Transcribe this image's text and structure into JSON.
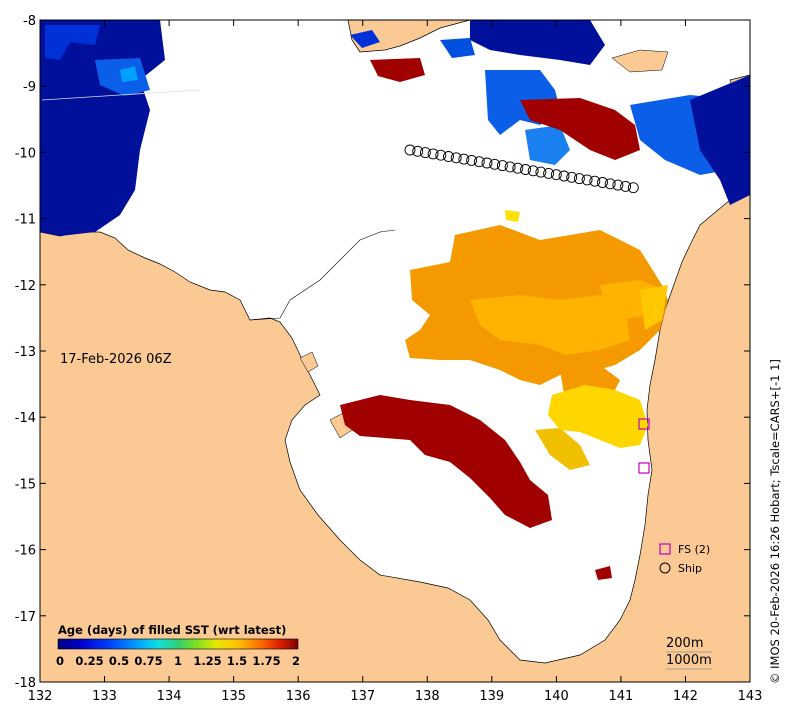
{
  "map": {
    "date_label": "17-Feb-2026 06Z",
    "credit": "© IMOS 20-Feb-2026 16:26 Hobart; Tscale=CARS+[-1 1]",
    "x_ticks": [
      "132",
      "133",
      "134",
      "135",
      "136",
      "137",
      "138",
      "139",
      "140",
      "141",
      "142",
      "143"
    ],
    "y_ticks": [
      "-8",
      "-9",
      "-10",
      "-11",
      "-12",
      "-13",
      "-14",
      "-15",
      "-16",
      "-17",
      "-18"
    ],
    "lon_range": [
      132,
      143
    ],
    "lat_range": [
      -18,
      -8
    ],
    "colorbar": {
      "title": "Age (days) of filled SST (wrt latest)",
      "labels": [
        "0",
        "0.25",
        "0.5",
        "0.75",
        "1",
        "1.25",
        "1.5",
        "1.75",
        "2"
      ],
      "range": [
        0,
        2
      ],
      "colors": [
        "#00007f",
        "#0000d0",
        "#0044ff",
        "#00a0ff",
        "#10e0e0",
        "#30d070",
        "#80e020",
        "#e8e800",
        "#ffc000",
        "#ff7000",
        "#e02000",
        "#7f0000"
      ]
    },
    "legend": {
      "fs_label": "FS (2)",
      "ship_label": "Ship"
    },
    "contours": {
      "label_200": "200m",
      "label_1000": "1000m"
    },
    "colors": {
      "land": "#fbc994",
      "sea": "#ffffff",
      "marker": "#c000c0"
    }
  }
}
